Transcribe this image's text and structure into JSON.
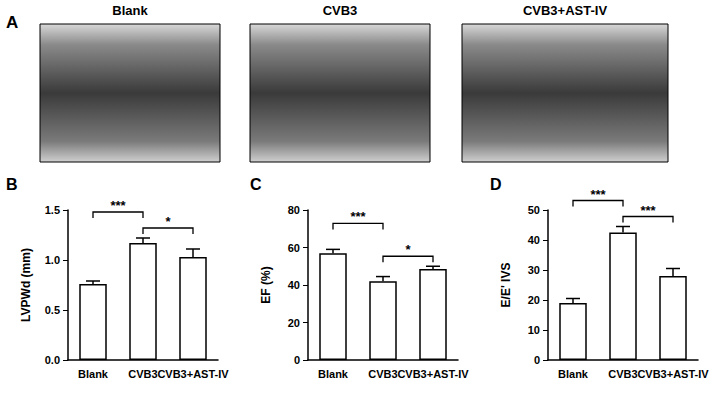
{
  "panel_a": {
    "title": "A",
    "labels": [
      "Blank",
      "CVB3",
      "CVB3+AST-IV"
    ]
  },
  "chart_data": [
    {
      "type": "bar",
      "title": "B",
      "y_label": "LVPWd (mm)",
      "categories": [
        "Blank",
        "CVB3",
        "CVB3+AST-IV"
      ],
      "values": [
        0.76,
        1.17,
        1.03
      ],
      "errors": [
        0.03,
        0.05,
        0.08
      ],
      "color": "#ffffff",
      "ylim": [
        0,
        1.5
      ],
      "yticks": [
        {
          "value": 0,
          "label": "0.0"
        },
        {
          "value": 0.5,
          "label": "0.5"
        },
        {
          "value": 1,
          "label": "1.0"
        },
        {
          "value": 1.5,
          "label": "1.5"
        }
      ],
      "grid": false,
      "annotations": [
        {
          "between": [
            "Blank",
            "CVB3"
          ],
          "text": "***"
        },
        {
          "between": [
            "CVB3",
            "CVB3+AST-IV"
          ],
          "text": "*"
        }
      ]
    },
    {
      "type": "bar",
      "title": "C",
      "y_label": "EF (%)",
      "categories": [
        "Blank",
        "CVB3",
        "CVB3+AST-IV"
      ],
      "values": [
        57,
        42,
        48.5
      ],
      "errors": [
        2,
        2.5,
        1.5
      ],
      "color": "#ffffff",
      "ylim": [
        0,
        80
      ],
      "yticks": [
        0,
        20,
        40,
        60,
        80
      ],
      "grid": false,
      "annotations": [
        {
          "between": [
            "Blank",
            "CVB3"
          ],
          "text": "***"
        },
        {
          "between": [
            "CVB3",
            "CVB3+AST-IV"
          ],
          "text": "*"
        }
      ]
    },
    {
      "type": "bar",
      "title": "D",
      "y_label": "E/E' IVS",
      "categories": [
        "Blank",
        "CVB3",
        "CVB3+AST-IV"
      ],
      "values": [
        19,
        42.5,
        28
      ],
      "errors": [
        1.5,
        2,
        2.5
      ],
      "color": "#ffffff",
      "ylim": [
        0,
        50
      ],
      "yticks": [
        0,
        10,
        20,
        30,
        40,
        50
      ],
      "grid": false,
      "annotations": [
        {
          "between": [
            "Blank",
            "CVB3"
          ],
          "text": "***"
        },
        {
          "between": [
            "CVB3",
            "CVB3+AST-IV"
          ],
          "text": "***"
        }
      ]
    }
  ]
}
